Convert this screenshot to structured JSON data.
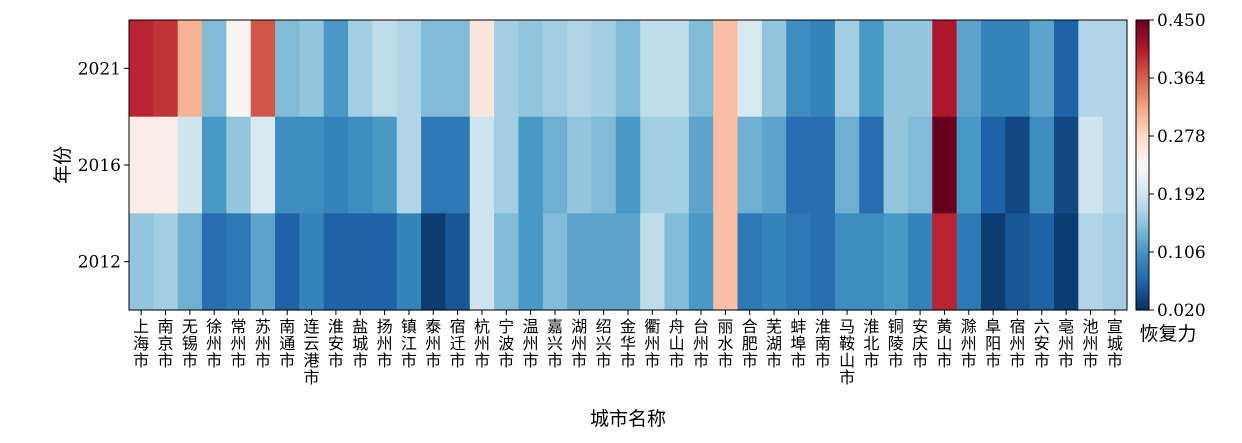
{
  "chart_data": {
    "type": "heatmap",
    "title": "",
    "xlabel": "城市名称",
    "ylabel": "年份",
    "colorbar_label": "恢复力",
    "colorbar_ticks": [
      "0.450",
      "0.364",
      "0.278",
      "0.192",
      "0.106",
      "0.020"
    ],
    "vmin": 0.02,
    "vmax": 0.45,
    "colormap": "RdBu_r",
    "rows": [
      "2021",
      "2016",
      "2012"
    ],
    "columns": [
      "上海市",
      "南京市",
      "无锡市",
      "徐州市",
      "常州市",
      "苏州市",
      "南通市",
      "连云港市",
      "淮安市",
      "盐城市",
      "扬州市",
      "镇江市",
      "泰州市",
      "宿迁市",
      "杭州市",
      "宁波市",
      "温州市",
      "嘉兴市",
      "湖州市",
      "绍兴市",
      "金华市",
      "衢州市",
      "舟山市",
      "台州市",
      "丽水市",
      "合肥市",
      "芜湖市",
      "蚌埠市",
      "淮南市",
      "马鞍山市",
      "淮北市",
      "铜陵市",
      "安庆市",
      "黄山市",
      "滁州市",
      "阜阳市",
      "宿州市",
      "六安市",
      "亳州市",
      "池州市",
      "宣城市"
    ],
    "values": [
      [
        0.4,
        0.39,
        0.31,
        0.14,
        0.24,
        0.37,
        0.14,
        0.15,
        0.11,
        0.16,
        0.18,
        0.17,
        0.14,
        0.14,
        0.26,
        0.16,
        0.15,
        0.16,
        0.17,
        0.16,
        0.14,
        0.18,
        0.18,
        0.14,
        0.3,
        0.2,
        0.15,
        0.1,
        0.09,
        0.16,
        0.11,
        0.15,
        0.15,
        0.41,
        0.12,
        0.09,
        0.09,
        0.12,
        0.06,
        0.17,
        0.17
      ],
      [
        0.25,
        0.25,
        0.19,
        0.11,
        0.15,
        0.2,
        0.1,
        0.1,
        0.09,
        0.1,
        0.11,
        0.17,
        0.08,
        0.08,
        0.19,
        0.16,
        0.11,
        0.13,
        0.15,
        0.14,
        0.11,
        0.16,
        0.16,
        0.12,
        0.3,
        0.13,
        0.12,
        0.07,
        0.07,
        0.13,
        0.07,
        0.15,
        0.14,
        0.45,
        0.11,
        0.06,
        0.04,
        0.1,
        0.04,
        0.19,
        0.17
      ],
      [
        0.15,
        0.16,
        0.13,
        0.07,
        0.08,
        0.12,
        0.06,
        0.09,
        0.06,
        0.06,
        0.06,
        0.09,
        0.03,
        0.05,
        0.19,
        0.14,
        0.11,
        0.14,
        0.12,
        0.12,
        0.12,
        0.18,
        0.14,
        0.11,
        0.3,
        0.08,
        0.09,
        0.08,
        0.07,
        0.1,
        0.1,
        0.11,
        0.09,
        0.4,
        0.08,
        0.03,
        0.05,
        0.06,
        0.03,
        0.17,
        0.16
      ]
    ]
  }
}
